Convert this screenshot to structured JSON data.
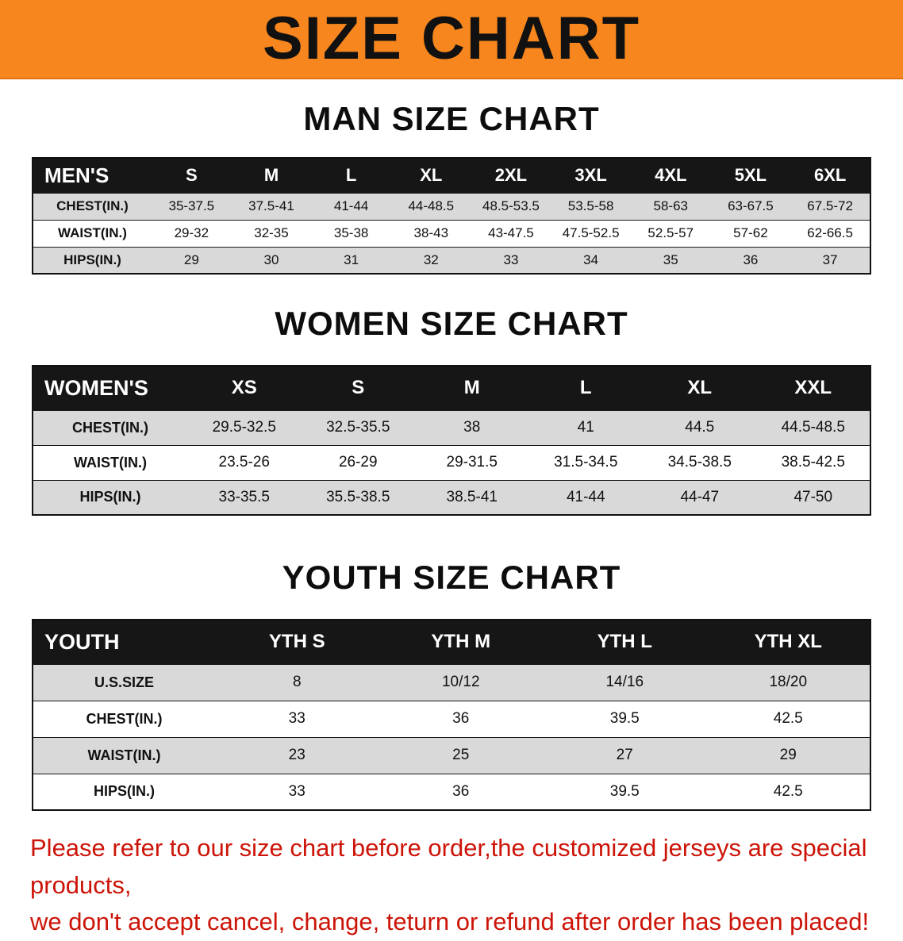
{
  "banner": {
    "title": "SIZE CHART",
    "bg_color": "#f6861d",
    "text_color": "#111111"
  },
  "colors": {
    "table_header_bg": "#161616",
    "table_stripe": "#d9d9d9",
    "footer_text": "#cc1408"
  },
  "sections": [
    {
      "heading": "MAN SIZE CHART",
      "table": {
        "header": [
          "MEN'S",
          "S",
          "M",
          "L",
          "XL",
          "2XL",
          "3XL",
          "4XL",
          "5XL",
          "6XL"
        ],
        "rows": [
          {
            "label": "CHEST(IN.)",
            "values": [
              "35-37.5",
              "37.5-41",
              "41-44",
              "44-48.5",
              "48.5-53.5",
              "53.5-58",
              "58-63",
              "63-67.5",
              "67.5-72"
            ]
          },
          {
            "label": "WAIST(IN.)",
            "values": [
              "29-32",
              "32-35",
              "35-38",
              "38-43",
              "43-47.5",
              "47.5-52.5",
              "52.5-57",
              "57-62",
              "62-66.5"
            ]
          },
          {
            "label": "HIPS(IN.)",
            "values": [
              "29",
              "30",
              "31",
              "32",
              "33",
              "34",
              "35",
              "36",
              "37"
            ]
          }
        ]
      }
    },
    {
      "heading": "WOMEN SIZE CHART",
      "table": {
        "header": [
          "WOMEN'S",
          "XS",
          "S",
          "M",
          "L",
          "XL",
          "XXL"
        ],
        "rows": [
          {
            "label": "CHEST(IN.)",
            "values": [
              "29.5-32.5",
              "32.5-35.5",
              "38",
              "41",
              "44.5",
              "44.5-48.5"
            ]
          },
          {
            "label": "WAIST(IN.)",
            "values": [
              "23.5-26",
              "26-29",
              "29-31.5",
              "31.5-34.5",
              "34.5-38.5",
              "38.5-42.5"
            ]
          },
          {
            "label": "HIPS(IN.)",
            "values": [
              "33-35.5",
              "35.5-38.5",
              "38.5-41",
              "41-44",
              "44-47",
              "47-50"
            ]
          }
        ]
      }
    },
    {
      "heading": "YOUTH SIZE CHART",
      "table": {
        "header": [
          "YOUTH",
          "YTH S",
          "YTH M",
          "YTH L",
          "YTH XL"
        ],
        "rows": [
          {
            "label": "U.S.SIZE",
            "values": [
              "8",
              "10/12",
              "14/16",
              "18/20"
            ]
          },
          {
            "label": "CHEST(IN.)",
            "values": [
              "33",
              "36",
              "39.5",
              "42.5"
            ]
          },
          {
            "label": "WAIST(IN.)",
            "values": [
              "23",
              "25",
              "27",
              "29"
            ]
          },
          {
            "label": "HIPS(IN.)",
            "values": [
              "33",
              "36",
              "39.5",
              "42.5"
            ]
          }
        ]
      }
    }
  ],
  "footer": {
    "line1": "Please refer to our size chart before order,the customized jerseys are special products,",
    "line2": "we don't accept cancel, change, teturn or refund after order has been placed!"
  }
}
